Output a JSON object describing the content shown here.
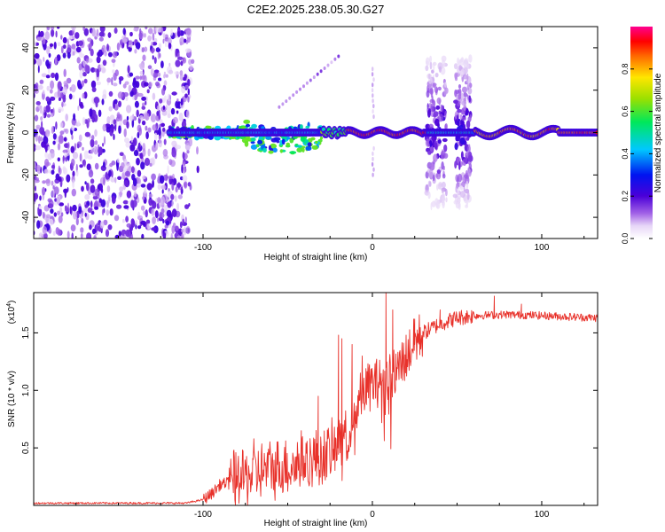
{
  "title": "C2E2.2025.238.05.30.G27",
  "chart_data": [
    {
      "type": "heatmap",
      "xlabel": "Height of straight line (km)",
      "ylabel": "Frequency (Hz)",
      "xlim": [
        -200,
        133
      ],
      "ylim": [
        -50,
        50
      ],
      "x_ticks": [
        -100,
        0,
        100
      ],
      "x_tick_labels": [
        "-100",
        "0",
        "100"
      ],
      "y_ticks": [
        -40,
        -20,
        0,
        20,
        40
      ],
      "y_tick_labels": [
        "-40",
        "-20",
        "0",
        "20",
        "40"
      ],
      "colorbar": {
        "label": "Normalized spectral amplitude",
        "range": [
          0,
          1
        ],
        "ticks": [
          0.0,
          0.2,
          0.4,
          0.6,
          0.8
        ],
        "tick_labels": [
          "0.0",
          "0.2",
          "0.4",
          "0.6",
          "0.8"
        ],
        "colormap": "rainbow (white-violet-blue-cyan-green-yellow-red-magenta)"
      },
      "regions": [
        {
          "name": "broadband noise",
          "x_range": [
            -200,
            -107
          ],
          "freq_range": [
            -50,
            50
          ],
          "amplitude": 0.18
        },
        {
          "name": "carrier line",
          "x_range": [
            -120,
            133
          ],
          "freq": 0,
          "amplitude": 0.9
        },
        {
          "name": "scintillation patch",
          "x_range": [
            -120,
            -30
          ],
          "freq_range": [
            -15,
            6
          ],
          "amplitude": 0.45
        },
        {
          "name": "weak spike",
          "x_range": [
            -1,
            1
          ],
          "freq_range": [
            -20,
            30
          ],
          "amplitude": 0.1
        },
        {
          "name": "broadband burst 1",
          "x_range": [
            32,
            44
          ],
          "freq_range": [
            -35,
            35
          ],
          "amplitude": 0.25
        },
        {
          "name": "broadband burst 2",
          "x_range": [
            49,
            58
          ],
          "freq_range": [
            -35,
            35
          ],
          "amplitude": 0.25
        },
        {
          "name": "faint diagonal streak",
          "x_range": [
            -55,
            -20
          ],
          "freq_range": [
            12,
            36
          ],
          "amplitude": 0.15
        }
      ]
    },
    {
      "type": "line",
      "xlabel": "Height of straight line (km)",
      "ylabel": "SNR (10 * v/v)",
      "scale_label": "(x10",
      "scale_exp": "4",
      "xlim": [
        -200,
        133
      ],
      "ylim": [
        0,
        1.85
      ],
      "x_ticks": [
        -100,
        0,
        100
      ],
      "x_tick_labels": [
        "-100",
        "0",
        "100"
      ],
      "y_ticks": [
        0.5,
        1.0,
        1.5
      ],
      "y_tick_labels": [
        "0.5",
        "1.0",
        "1.5"
      ],
      "color": "#e8312a",
      "profile": [
        [
          -200,
          0.02
        ],
        [
          -130,
          0.02
        ],
        [
          -110,
          0.02
        ],
        [
          -100,
          0.05
        ],
        [
          -95,
          0.1
        ],
        [
          -90,
          0.18
        ],
        [
          -80,
          0.22
        ],
        [
          -70,
          0.28
        ],
        [
          -60,
          0.32
        ],
        [
          -50,
          0.34
        ],
        [
          -40,
          0.38
        ],
        [
          -30,
          0.42
        ],
        [
          -22,
          0.48
        ],
        [
          -18,
          0.55
        ],
        [
          -14,
          0.65
        ],
        [
          -10,
          0.85
        ],
        [
          -5,
          1.0
        ],
        [
          0,
          1.05
        ],
        [
          5,
          1.08
        ],
        [
          10,
          1.1
        ],
        [
          15,
          1.18
        ],
        [
          20,
          1.3
        ],
        [
          25,
          1.42
        ],
        [
          30,
          1.5
        ],
        [
          40,
          1.58
        ],
        [
          50,
          1.63
        ],
        [
          60,
          1.65
        ],
        [
          80,
          1.66
        ],
        [
          100,
          1.65
        ],
        [
          133,
          1.63
        ]
      ],
      "spikes": [
        [
          -82,
          0.47
        ],
        [
          -70,
          0.58
        ],
        [
          -42,
          0.65
        ],
        [
          -32,
          0.95
        ],
        [
          -20,
          1.48
        ],
        [
          -18,
          1.45
        ],
        [
          -12,
          1.4
        ],
        [
          -6,
          1.3
        ],
        [
          8,
          1.85
        ],
        [
          12,
          1.7
        ],
        [
          25,
          1.62
        ],
        [
          40,
          1.7
        ],
        [
          72,
          1.82
        ],
        [
          88,
          1.75
        ]
      ]
    }
  ]
}
